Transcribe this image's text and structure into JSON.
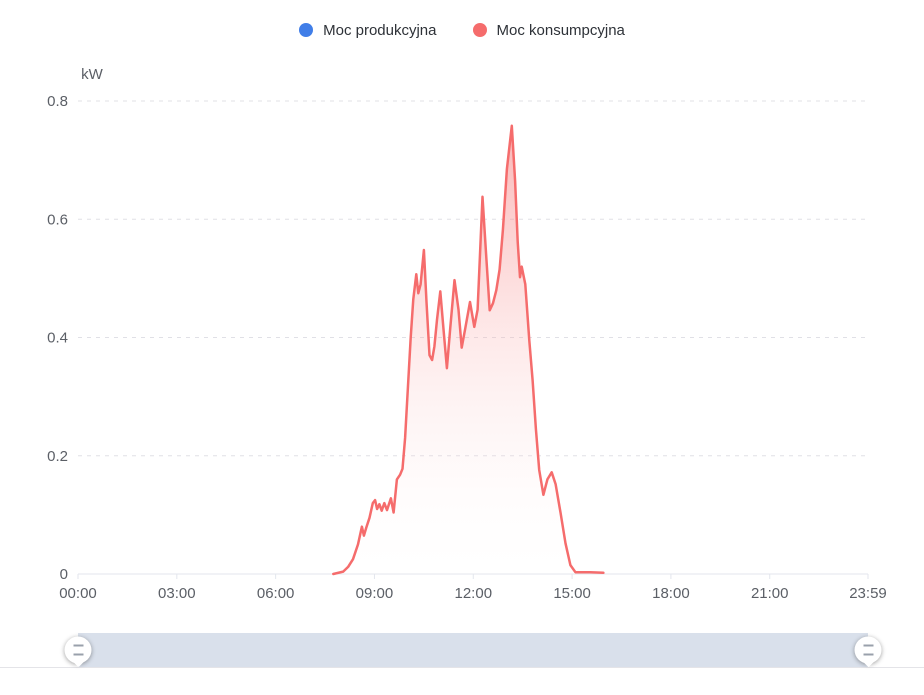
{
  "chart_data": {
    "type": "area",
    "title": "",
    "legend": {
      "position": "top-center",
      "items": [
        {
          "label": "Moc produkcyjna",
          "color": "#407EE8"
        },
        {
          "label": "Moc konsumpcyjna",
          "color": "#F56C6C"
        }
      ]
    },
    "y_axis": {
      "name": "kW",
      "ticks": [
        "0",
        "0.2",
        "0.4",
        "0.6",
        "0.8"
      ],
      "values": [
        0,
        0.2,
        0.4,
        0.6,
        0.8
      ],
      "range": [
        0,
        0.8
      ],
      "gridlines": "dashed"
    },
    "x_axis": {
      "type": "time",
      "ticks": [
        "00:00",
        "03:00",
        "06:00",
        "09:00",
        "12:00",
        "15:00",
        "18:00",
        "21:00",
        "23:59"
      ]
    },
    "series": [
      {
        "name": "Moc produkcyjna",
        "color": "#407EE8",
        "area": false,
        "points": []
      },
      {
        "name": "Moc konsumpcyjna",
        "color": "#F56C6C",
        "area": true,
        "points": [
          [
            7.75,
            0
          ],
          [
            8.05,
            0.004
          ],
          [
            8.2,
            0.012
          ],
          [
            8.35,
            0.025
          ],
          [
            8.5,
            0.05
          ],
          [
            8.62,
            0.08
          ],
          [
            8.68,
            0.065
          ],
          [
            8.75,
            0.078
          ],
          [
            8.85,
            0.095
          ],
          [
            8.95,
            0.12
          ],
          [
            9.02,
            0.125
          ],
          [
            9.08,
            0.11
          ],
          [
            9.15,
            0.118
          ],
          [
            9.22,
            0.107
          ],
          [
            9.3,
            0.12
          ],
          [
            9.38,
            0.108
          ],
          [
            9.5,
            0.128
          ],
          [
            9.58,
            0.104
          ],
          [
            9.68,
            0.16
          ],
          [
            9.78,
            0.168
          ],
          [
            9.85,
            0.178
          ],
          [
            9.93,
            0.23
          ],
          [
            10.0,
            0.3
          ],
          [
            10.1,
            0.4
          ],
          [
            10.18,
            0.465
          ],
          [
            10.27,
            0.507
          ],
          [
            10.33,
            0.475
          ],
          [
            10.4,
            0.49
          ],
          [
            10.5,
            0.548
          ],
          [
            10.58,
            0.46
          ],
          [
            10.67,
            0.37
          ],
          [
            10.75,
            0.362
          ],
          [
            10.82,
            0.385
          ],
          [
            10.9,
            0.43
          ],
          [
            11.0,
            0.478
          ],
          [
            11.1,
            0.412
          ],
          [
            11.2,
            0.348
          ],
          [
            11.3,
            0.415
          ],
          [
            11.43,
            0.497
          ],
          [
            11.55,
            0.447
          ],
          [
            11.65,
            0.383
          ],
          [
            11.75,
            0.413
          ],
          [
            11.9,
            0.46
          ],
          [
            12.03,
            0.418
          ],
          [
            12.13,
            0.447
          ],
          [
            12.28,
            0.638
          ],
          [
            12.4,
            0.53
          ],
          [
            12.5,
            0.446
          ],
          [
            12.6,
            0.458
          ],
          [
            12.7,
            0.48
          ],
          [
            12.8,
            0.515
          ],
          [
            12.9,
            0.582
          ],
          [
            13.02,
            0.685
          ],
          [
            13.17,
            0.758
          ],
          [
            13.27,
            0.665
          ],
          [
            13.35,
            0.562
          ],
          [
            13.42,
            0.502
          ],
          [
            13.47,
            0.52
          ],
          [
            13.58,
            0.49
          ],
          [
            13.7,
            0.395
          ],
          [
            13.8,
            0.328
          ],
          [
            13.9,
            0.245
          ],
          [
            14.0,
            0.176
          ],
          [
            14.13,
            0.134
          ],
          [
            14.25,
            0.16
          ],
          [
            14.38,
            0.172
          ],
          [
            14.5,
            0.152
          ],
          [
            14.65,
            0.103
          ],
          [
            14.8,
            0.052
          ],
          [
            14.95,
            0.015
          ],
          [
            15.1,
            0.003
          ],
          [
            15.55,
            0.003
          ],
          [
            15.95,
            0.002
          ]
        ]
      }
    ],
    "colors": {
      "grid_dashed": "#E0E0E6",
      "axis_line": "#E3E6ED",
      "axis_label": "#5B5F66",
      "area_fade_to": "#FFFFFF"
    }
  },
  "datazoom": {
    "selected_range": [
      "00:00",
      "23:59"
    ],
    "bar_color": "#D9E0EB"
  }
}
